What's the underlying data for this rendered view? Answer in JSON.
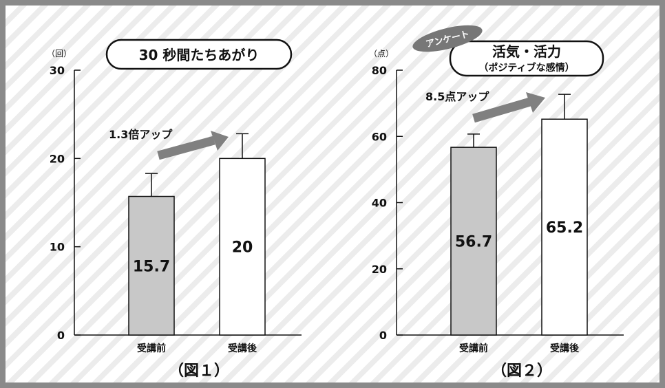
{
  "colors": {
    "before": "#c8c8c8",
    "after": "#ffffff",
    "arrow": "#808080",
    "badge": "#777777",
    "axis": "#111111"
  },
  "chart_data": [
    {
      "type": "bar",
      "title": "30 秒間たちあがり",
      "unit": "（回）",
      "categories": [
        "受講前",
        "受講後"
      ],
      "values": [
        15.7,
        20
      ],
      "value_labels": [
        "15.7",
        "20"
      ],
      "error_top": [
        18.3,
        22.8
      ],
      "ylim": [
        0,
        30
      ],
      "yticks": [
        0,
        10,
        20,
        30
      ],
      "annotation": "1.3倍アップ",
      "caption": "（図１）",
      "grid": false
    },
    {
      "type": "bar",
      "title": "活気・活力",
      "subtitle": "（ポジティブな感情）",
      "badge": "アンケート",
      "unit": "（点）",
      "categories": [
        "受講前",
        "受講後"
      ],
      "values": [
        56.7,
        65.2
      ],
      "value_labels": [
        "56.7",
        "65.2"
      ],
      "error_top": [
        60.7,
        72.7
      ],
      "ylim": [
        0,
        80
      ],
      "yticks": [
        0,
        20,
        40,
        60,
        80
      ],
      "annotation": "8.5点アップ",
      "caption": "（図２）",
      "grid": false
    }
  ]
}
